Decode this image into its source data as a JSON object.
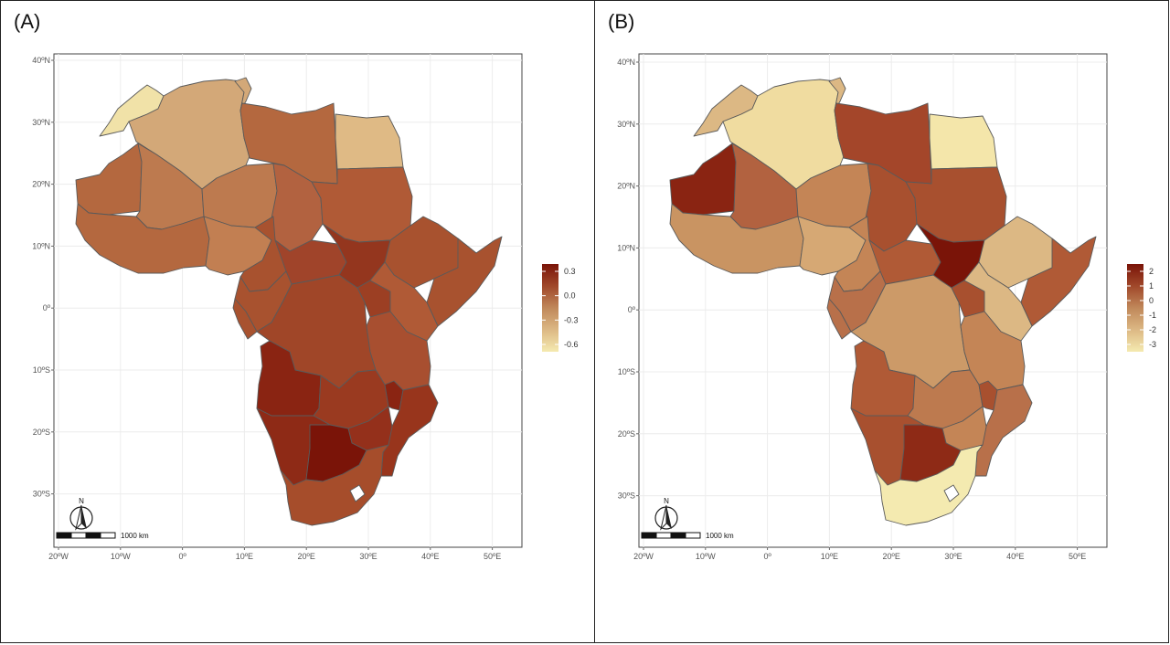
{
  "panels": [
    {
      "id": "A",
      "label": "(A)",
      "y_ticks": [
        "40ºN",
        "30ºN",
        "20ºN",
        "10ºN",
        "0º",
        "10ºS",
        "20ºS",
        "30ºS"
      ],
      "x_ticks": [
        "20ºW",
        "10ºW",
        "0º",
        "10ºE",
        "20ºE",
        "30ºE",
        "40ºE",
        "50ºE"
      ],
      "legend": {
        "labels": [
          "0.3",
          "0.0",
          "-0.3",
          "-0.6"
        ],
        "colors": [
          "#7a1408",
          "#a0482a",
          "#c0885a",
          "#dcb884",
          "#f4eab0"
        ]
      },
      "scale_bar_label": "1000 km",
      "north_label": "N",
      "country_colors": {
        "morocco": "#f1e2a8",
        "algeria": "#d3a878",
        "tunisia": "#d3a878",
        "libya": "#b4683f",
        "egypt": "#dfba85",
        "mauritania": "#b4683f",
        "mali": "#bd7a4f",
        "niger": "#bd7a4f",
        "chad": "#b26240",
        "sudan": "#b05a36",
        "west_africa": "#b4683f",
        "nigeria": "#c27f52",
        "cameroon": "#a8522f",
        "car": "#a0442a",
        "south_sudan": "#94361e",
        "ethiopia": "#a8522f",
        "somalia": "#a8522f",
        "drc": "#a04628",
        "congo": "#a8522f",
        "gabon": "#a8522f",
        "kenya": "#b05a36",
        "uganda": "#9c3f23",
        "tanzania": "#a84f30",
        "angola": "#8a2412",
        "zambia": "#9a3a20",
        "mozambique": "#98351c",
        "malawi": "#8a2412",
        "zimbabwe": "#94301b",
        "namibia": "#8e2a16",
        "botswana": "#7a1408",
        "south_africa": "#a64d2b",
        "madagascar": "#ffffff"
      }
    },
    {
      "id": "B",
      "label": "(B)",
      "y_ticks": [
        "40ºN",
        "30ºN",
        "20ºN",
        "10ºN",
        "0º",
        "10ºS",
        "20ºS",
        "30ºS"
      ],
      "x_ticks": [
        "20ºW",
        "10ºW",
        "0º",
        "10ºE",
        "20ºE",
        "30ºE",
        "40ºE",
        "50ºE"
      ],
      "legend": {
        "labels": [
          "2",
          "1",
          "0",
          "-1",
          "-2",
          "-3"
        ],
        "colors": [
          "#7a1408",
          "#a0482a",
          "#c0885a",
          "#dcb884",
          "#f4eab0"
        ]
      },
      "scale_bar_label": "1000 km",
      "north_label": "N",
      "country_colors": {
        "morocco": "#dcb884",
        "algeria": "#f0dca0",
        "tunisia": "#dcb884",
        "libya": "#a4462a",
        "egypt": "#f4e6aa",
        "mauritania": "#8a2412",
        "mali": "#b26240",
        "niger": "#c48556",
        "chad": "#a8502f",
        "sudan": "#a8502f",
        "west_africa": "#c99462",
        "nigeria": "#d6a874",
        "cameroon": "#c48556",
        "car": "#b05a36",
        "south_sudan": "#7a1408",
        "ethiopia": "#dcb884",
        "somalia": "#b05a36",
        "drc": "#cc9a68",
        "congo": "#b8704a",
        "gabon": "#b8704a",
        "kenya": "#dcb884",
        "uganda": "#a8502f",
        "tanzania": "#c48556",
        "angola": "#b05a36",
        "zambia": "#bd7a4f",
        "mozambique": "#b8704a",
        "malawi": "#a8502f",
        "zimbabwe": "#c48556",
        "namibia": "#a8502f",
        "botswana": "#8e2a16",
        "south_africa": "#f4eab0",
        "madagascar": "#ffffff"
      }
    }
  ]
}
